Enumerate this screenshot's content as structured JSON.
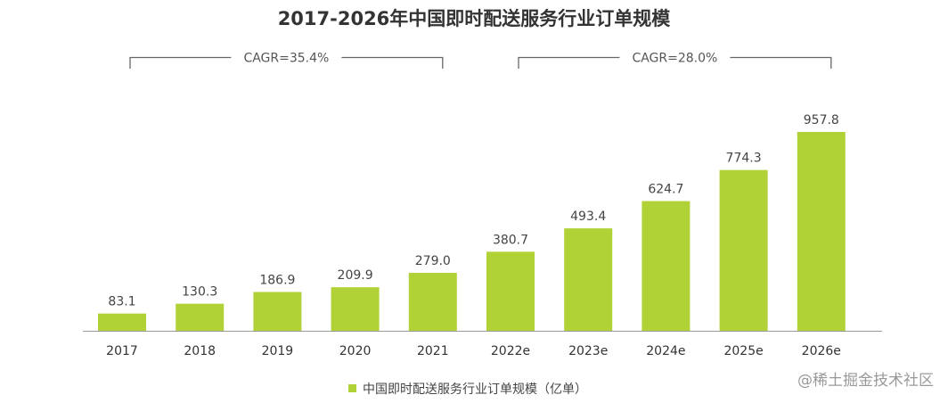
{
  "chart_data": {
    "type": "bar",
    "title": "2017-2026年中国即时配送服务行业订单规模",
    "categories": [
      "2017",
      "2018",
      "2019",
      "2020",
      "2021",
      "2022e",
      "2023e",
      "2024e",
      "2025e",
      "2026e"
    ],
    "series": [
      {
        "name": "中国即时配送服务行业订单规模（亿单）",
        "values": [
          83.1,
          130.3,
          186.9,
          209.9,
          279.0,
          380.7,
          493.4,
          624.7,
          774.3,
          957.8
        ],
        "labels": [
          "83.1",
          "130.3",
          "186.9",
          "209.9",
          "279.0",
          "380.7",
          "493.4",
          "624.7",
          "774.3",
          "957.8"
        ]
      }
    ],
    "annotations": [
      {
        "text": "CAGR=35.4%",
        "from": "2017",
        "to": "2021"
      },
      {
        "text": "CAGR=28.0%",
        "from": "2022e",
        "to": "2026e"
      }
    ],
    "ylim": [
      0,
      1000
    ],
    "grid": false,
    "legend_position": "bottom",
    "bar_color": "#b0d236"
  },
  "watermark": "@稀土掘金技术社区"
}
